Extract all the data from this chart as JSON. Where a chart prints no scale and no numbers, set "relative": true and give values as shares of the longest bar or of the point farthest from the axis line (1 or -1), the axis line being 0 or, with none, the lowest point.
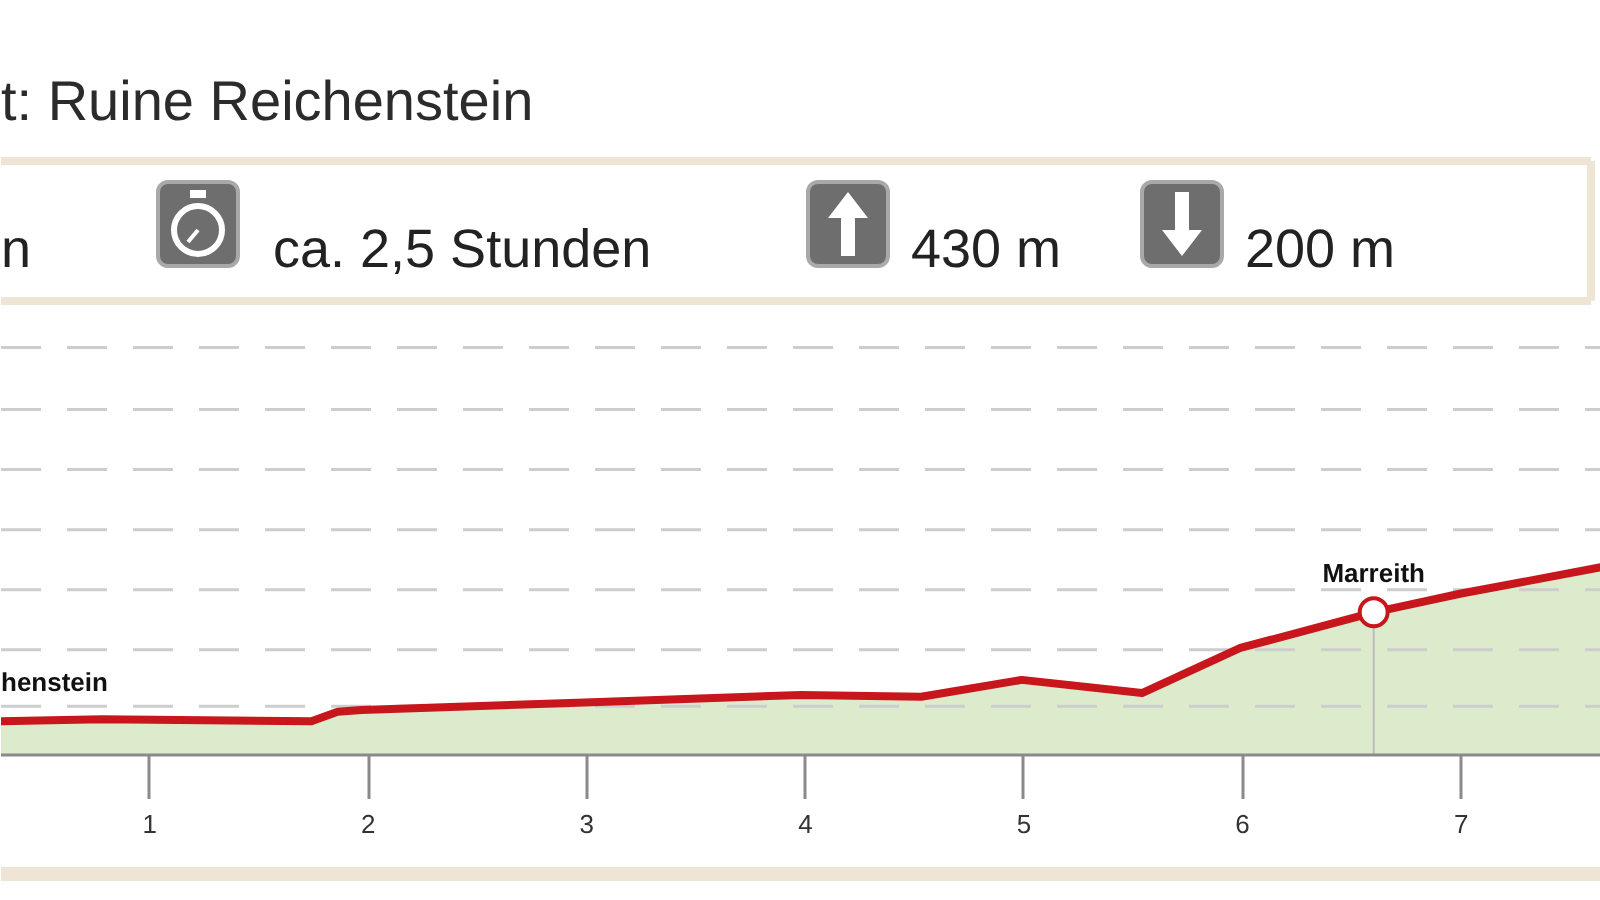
{
  "chart_data": {
    "type": "area",
    "title": "t: Ruine Reichenstein",
    "annotations": [
      "n",
      "ca. 2,5 Stunden",
      "430 m",
      "200 m",
      {
        "text": "henstein",
        "x": 0.32,
        "y": 0.18
      },
      {
        "text": "Marreith",
        "x": 6.6,
        "y": 0.76
      }
    ],
    "x": [
      0.32,
      0.78,
      1.74,
      1.86,
      1.97,
      2.99,
      3.98,
      4.53,
      4.99,
      5.54,
      5.99,
      6.6,
      7.0,
      7.64
    ],
    "series": [
      {
        "color": "#c8161d",
        "values": [
          0.18,
          0.19,
          0.18,
          0.23,
          0.24,
          0.28,
          0.32,
          0.31,
          0.4,
          0.33,
          0.57,
          0.76,
          0.86,
          1.0
        ]
      }
    ],
    "relative": true,
    "xlim": [
      0.32,
      7.64
    ],
    "xticks": [
      1,
      2,
      3,
      4,
      5,
      6,
      7
    ],
    "ref_lines": [
      {
        "axis": "y",
        "value": 0.26,
        "color": "#cdcdcd",
        "line_style": "dashed"
      },
      {
        "axis": "y",
        "value": 0.56,
        "color": "#cdcdcd",
        "line_style": "dashed"
      },
      {
        "axis": "y",
        "value": 0.88,
        "color": "#cdcdcd",
        "line_style": "dashed"
      },
      {
        "axis": "y",
        "value": 1.2,
        "color": "#cdcdcd",
        "line_style": "dashed"
      },
      {
        "axis": "y",
        "value": 1.52,
        "color": "#cdcdcd",
        "line_style": "dashed"
      },
      {
        "axis": "y",
        "value": 1.84,
        "color": "#cdcdcd",
        "line_style": "dashed"
      },
      {
        "axis": "y",
        "value": 2.17,
        "color": "#cdcdcd",
        "line_style": "dashed"
      }
    ]
  }
}
